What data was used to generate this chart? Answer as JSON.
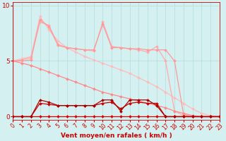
{
  "background_color": "#d4f0f0",
  "grid_color": "#b8e0e0",
  "xlim": [
    0,
    23
  ],
  "ylim": [
    -0.3,
    10.3
  ],
  "yticks": [
    0,
    5,
    10
  ],
  "xticks": [
    0,
    1,
    2,
    3,
    4,
    5,
    6,
    7,
    8,
    9,
    10,
    11,
    12,
    13,
    14,
    15,
    16,
    17,
    18,
    19,
    20,
    21,
    22,
    23
  ],
  "xlabel": "Vent moyen/en rafales ( km/h )",
  "xlabel_color": "#cc0000",
  "xlabel_fontsize": 6.5,
  "tick_color": "#cc0000",
  "tick_fontsize": 5.5,
  "lines": [
    {
      "x": [
        0,
        1,
        2,
        3,
        4,
        5,
        6,
        7,
        8,
        9,
        10,
        11,
        12,
        13,
        14,
        15,
        16,
        17,
        18,
        19,
        20,
        21,
        22,
        23
      ],
      "y": [
        5.0,
        5.2,
        5.4,
        9.0,
        7.8,
        6.8,
        6.2,
        5.8,
        5.4,
        5.1,
        4.8,
        4.5,
        4.2,
        3.9,
        3.5,
        3.1,
        2.7,
        2.2,
        1.7,
        1.2,
        0.7,
        0.3,
        0.1,
        0.0
      ],
      "color": "#ffbbbb",
      "linewidth": 0.9,
      "marker": "D",
      "markersize": 2.0
    },
    {
      "x": [
        0,
        1,
        2,
        3,
        4,
        5,
        6,
        7,
        8,
        9,
        10,
        11,
        12,
        13,
        14,
        15,
        16,
        17,
        18,
        19,
        20,
        21,
        22,
        23
      ],
      "y": [
        5.0,
        5.1,
        5.3,
        8.5,
        8.2,
        6.5,
        6.2,
        6.1,
        6.0,
        5.9,
        8.5,
        6.3,
        6.2,
        6.1,
        6.0,
        5.8,
        6.3,
        5.0,
        0.5,
        0.1,
        0.0,
        0.0,
        0.0,
        0.0
      ],
      "color": "#ffaaaa",
      "linewidth": 0.9,
      "marker": "D",
      "markersize": 2.0
    },
    {
      "x": [
        0,
        1,
        2,
        3,
        4,
        5,
        6,
        7,
        8,
        9,
        10,
        11,
        12,
        13,
        14,
        15,
        16,
        17,
        18,
        19,
        20,
        21,
        22,
        23
      ],
      "y": [
        5.0,
        5.0,
        5.1,
        8.7,
        8.1,
        6.4,
        6.2,
        6.1,
        6.0,
        6.0,
        8.3,
        6.2,
        6.2,
        6.1,
        6.1,
        6.0,
        6.0,
        6.0,
        5.0,
        0.2,
        0.0,
        0.0,
        0.0,
        0.0
      ],
      "color": "#ff9999",
      "linewidth": 0.9,
      "marker": "D",
      "markersize": 2.0
    },
    {
      "x": [
        0,
        1,
        2,
        3,
        4,
        5,
        6,
        7,
        8,
        9,
        10,
        11,
        12,
        13,
        14,
        15,
        16,
        17,
        18,
        19,
        20,
        21,
        22,
        23
      ],
      "y": [
        5.0,
        4.8,
        4.6,
        4.3,
        4.0,
        3.7,
        3.4,
        3.1,
        2.8,
        2.5,
        2.2,
        2.0,
        1.8,
        1.6,
        1.4,
        1.2,
        1.0,
        0.8,
        0.5,
        0.3,
        0.1,
        0.0,
        0.0,
        0.0
      ],
      "color": "#ff8888",
      "linewidth": 0.9,
      "marker": "D",
      "markersize": 2.0
    },
    {
      "x": [
        0,
        1,
        2,
        3,
        4,
        5,
        6,
        7,
        8,
        9,
        10,
        11,
        12,
        13,
        14,
        15,
        16,
        17,
        18,
        19,
        20,
        21,
        22,
        23
      ],
      "y": [
        0.0,
        0.0,
        0.0,
        0.0,
        0.0,
        0.0,
        0.0,
        0.0,
        0.0,
        0.0,
        0.0,
        0.0,
        0.0,
        0.0,
        0.0,
        0.0,
        0.0,
        0.0,
        0.0,
        0.0,
        0.0,
        0.0,
        0.0,
        0.0
      ],
      "color": "#dd0000",
      "linewidth": 0.9,
      "marker": "D",
      "markersize": 2.0
    },
    {
      "x": [
        0,
        1,
        2,
        3,
        4,
        5,
        6,
        7,
        8,
        9,
        10,
        11,
        12,
        13,
        14,
        15,
        16,
        17,
        18,
        19,
        20,
        21,
        22,
        23
      ],
      "y": [
        0.0,
        0.0,
        0.0,
        1.2,
        1.1,
        1.0,
        1.0,
        1.0,
        1.0,
        1.0,
        1.2,
        1.3,
        0.7,
        1.2,
        1.3,
        1.2,
        1.2,
        0.0,
        0.0,
        0.0,
        0.0,
        0.0,
        0.0,
        0.0
      ],
      "color": "#cc0000",
      "linewidth": 0.9,
      "marker": "D",
      "markersize": 2.0
    },
    {
      "x": [
        0,
        1,
        2,
        3,
        4,
        5,
        6,
        7,
        8,
        9,
        10,
        11,
        12,
        13,
        14,
        15,
        16,
        17,
        18,
        19,
        20,
        21,
        22,
        23
      ],
      "y": [
        0.0,
        0.0,
        0.0,
        1.5,
        1.3,
        1.0,
        1.0,
        1.0,
        1.0,
        1.0,
        1.5,
        1.5,
        0.5,
        1.5,
        1.5,
        1.5,
        1.0,
        0.0,
        0.0,
        0.0,
        0.0,
        0.0,
        0.0,
        0.0
      ],
      "color": "#aa0000",
      "linewidth": 0.9,
      "marker": "D",
      "markersize": 2.0
    }
  ],
  "vline_color": "#888888",
  "vline_linewidth": 1.0,
  "hline_color": "#cc0000",
  "hline_linewidth": 0.7
}
